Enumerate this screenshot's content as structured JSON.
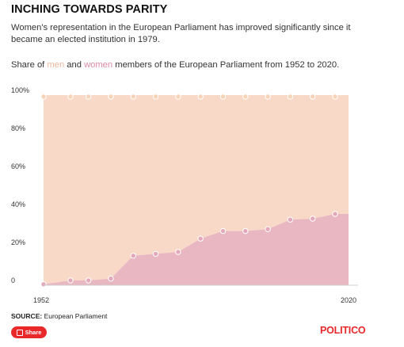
{
  "header": {
    "title": "INCHING TOWARDS PARITY",
    "subtitle": "Women's representation in the European Parliament has improved significantly since it became an elected institution in 1979.",
    "legend_prefix": "Share of ",
    "legend_men": "men",
    "legend_and": " and ",
    "legend_women": "women",
    "legend_suffix": " members of the European Parliament from 1952 to 2020."
  },
  "footer": {
    "source_label": "SOURCE:",
    "source_text": " European Parliament",
    "share_label": "Share",
    "logo_text": "POLITICO"
  },
  "colors": {
    "men": "#f8d9c7",
    "women": "#e9b7c1",
    "men_point": "#f6d3b6",
    "women_point": "#e3a9bb",
    "brand": "#e9282a"
  },
  "chart_data": {
    "type": "area",
    "stacked": true,
    "percent": true,
    "x": [
      1952,
      1958,
      1962,
      1967,
      1972,
      1977,
      1982,
      1987,
      1992,
      1997,
      2002,
      2007,
      2012,
      2017,
      2020
    ],
    "x_tick_labels": [
      "1952",
      "2020"
    ],
    "y_tick_labels": [
      "0",
      "20%",
      "40%",
      "60%",
      "80%",
      "100%"
    ],
    "ylim": [
      0,
      100
    ],
    "series": [
      {
        "name": "women",
        "values": [
          0.5,
          2.5,
          2.5,
          3.5,
          15.5,
          16.5,
          17.5,
          24.5,
          28.5,
          28.5,
          29.5,
          34.5,
          35,
          37.5,
          null
        ]
      },
      {
        "name": "men",
        "values": [
          99.5,
          97.5,
          97.5,
          96.5,
          84.5,
          83.5,
          82.5,
          75.5,
          71.5,
          71.5,
          70.5,
          65.5,
          65,
          62.5,
          null
        ]
      }
    ],
    "grid": false
  }
}
